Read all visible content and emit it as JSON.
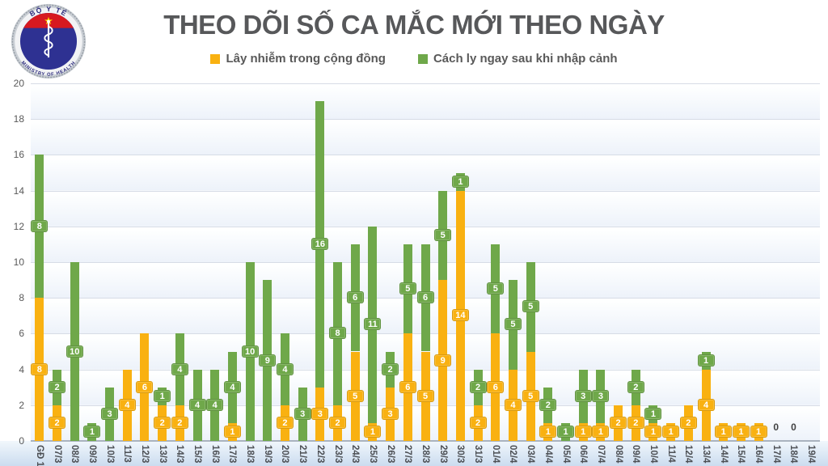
{
  "logo": {
    "arc_top": "BỘ Y TẾ",
    "arc_bottom": "MINISTRY OF HEALTH"
  },
  "title": "THEO DÕI SỐ CA MẮC MỚI THEO NGÀY",
  "legend": {
    "items": [
      {
        "label": "Lây nhiễm trong cộng đồng",
        "color": "#F9B111"
      },
      {
        "label": "Cách ly ngay sau khi nhập cảnh",
        "color": "#6FA84A"
      }
    ]
  },
  "chart_data": {
    "type": "bar",
    "stacked": true,
    "title": "THEO DÕI SỐ CA MẮC MỚI THEO NGÀY",
    "categories": [
      "GĐ 1",
      "07/3",
      "08/3",
      "09/3",
      "10/3",
      "11/3",
      "12/3",
      "13/3",
      "14/3",
      "15/3",
      "16/3",
      "17/3",
      "18/3",
      "19/3",
      "20/3",
      "21/3",
      "22/3",
      "23/3",
      "24/3",
      "25/3",
      "26/3",
      "27/3",
      "28/3",
      "29/3",
      "30/3",
      "31/3",
      "01/4",
      "02/4",
      "03/4",
      "04/4",
      "05/4",
      "06/4",
      "07/4",
      "08/4",
      "09/4",
      "10/4",
      "11/4",
      "12/4",
      "13/4",
      "14/4",
      "15/4",
      "16/4",
      "17/4",
      "18/4",
      "19/4"
    ],
    "series": [
      {
        "name": "Lây nhiễm trong cộng đồng",
        "color": "#F9B111",
        "values": [
          8,
          2,
          0,
          0,
          0,
          4,
          6,
          2,
          2,
          0,
          0,
          1,
          0,
          0,
          2,
          0,
          3,
          2,
          5,
          1,
          3,
          6,
          5,
          9,
          14,
          2,
          6,
          4,
          5,
          1,
          0,
          1,
          1,
          2,
          2,
          1,
          1,
          2,
          4,
          1,
          1,
          1,
          0,
          0,
          0
        ]
      },
      {
        "name": "Cách ly ngay sau khi nhập cảnh",
        "color": "#6FA84A",
        "values": [
          8,
          2,
          10,
          1,
          3,
          0,
          0,
          1,
          4,
          4,
          4,
          4,
          10,
          9,
          4,
          3,
          16,
          8,
          6,
          11,
          2,
          5,
          6,
          5,
          1,
          2,
          5,
          5,
          5,
          2,
          1,
          3,
          3,
          0,
          2,
          1,
          0,
          0,
          1,
          0,
          0,
          0,
          0,
          0,
          0
        ]
      }
    ],
    "zero_label_categories": [
      "17/4",
      "18/4"
    ],
    "zero_label_text": "0",
    "ylim": [
      0,
      20
    ],
    "yticks": [
      0,
      2,
      4,
      6,
      8,
      10,
      12,
      14,
      16,
      18,
      20
    ],
    "grid": true,
    "legend_position": "top",
    "xlabel_rotation": 90,
    "bar_label_color": "#ffffff"
  }
}
